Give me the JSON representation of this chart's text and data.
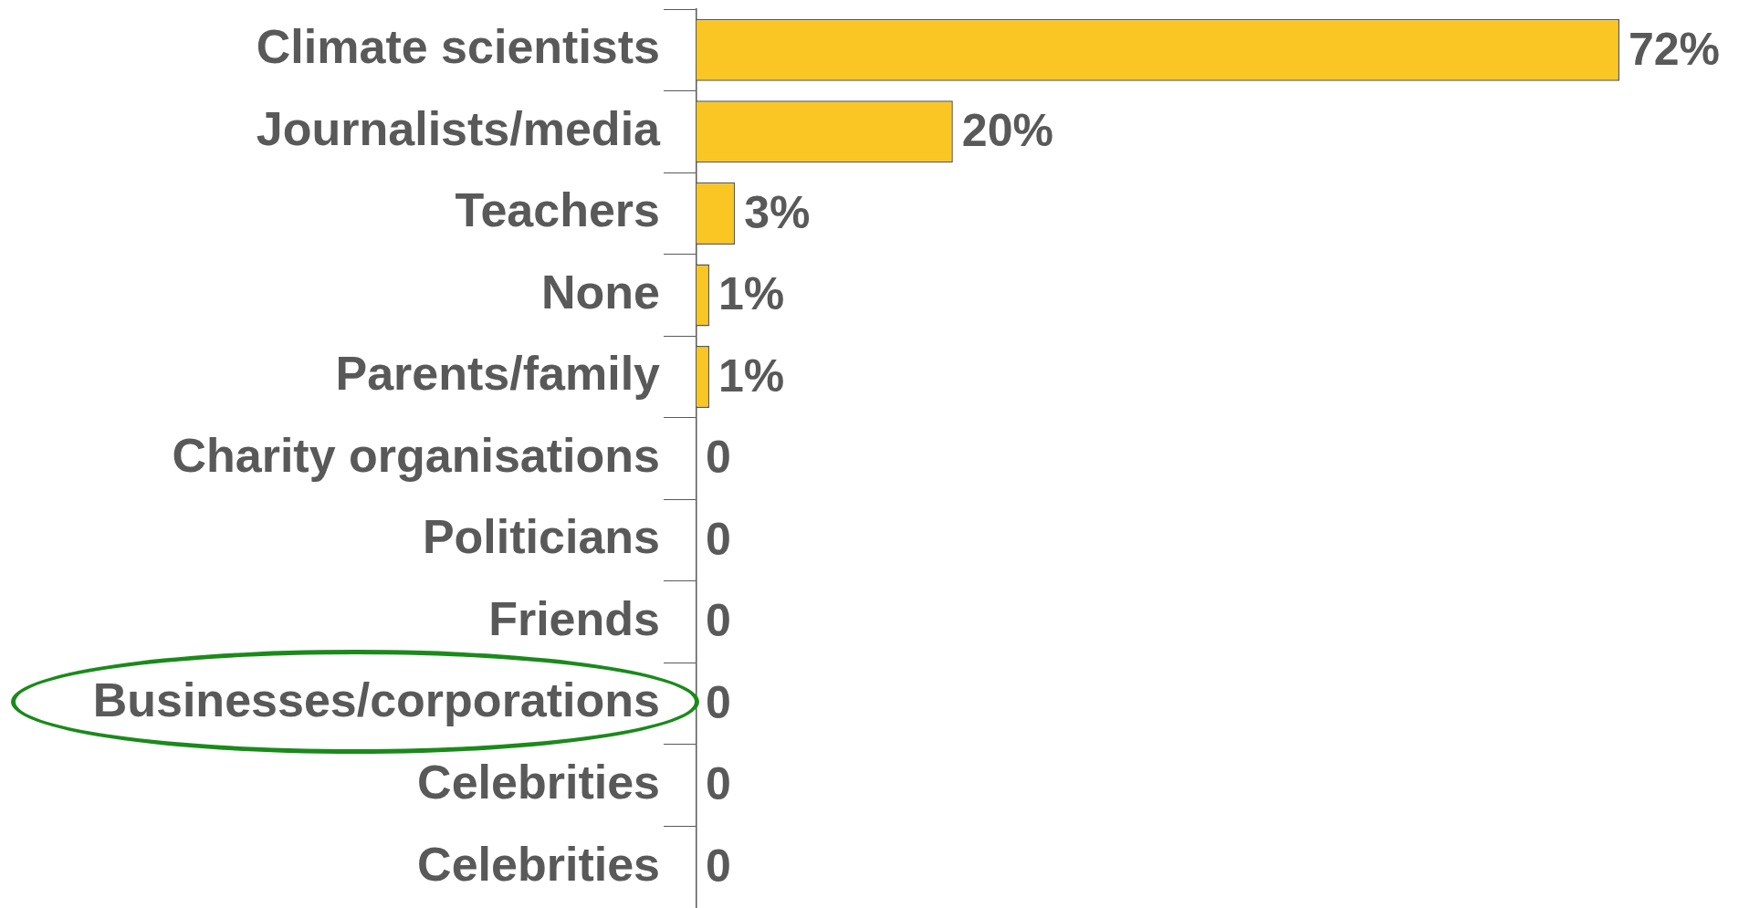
{
  "chart_data": {
    "type": "bar",
    "orientation": "horizontal",
    "categories": [
      "Climate scientists",
      "Journalists/media",
      "Teachers",
      "None",
      "Parents/family",
      "Charity organisations",
      "Politicians",
      "Friends",
      "Businesses/corporations",
      "Celebrities",
      "Celebrities"
    ],
    "values": [
      72,
      20,
      3,
      1,
      1,
      0,
      0,
      0,
      0,
      0,
      0
    ],
    "value_labels": [
      "72%",
      "20%",
      "3%",
      "1%",
      "1%",
      "0",
      "0",
      "0",
      "0",
      "0",
      "0"
    ],
    "color": "#f9c623",
    "legend": false
  }
}
